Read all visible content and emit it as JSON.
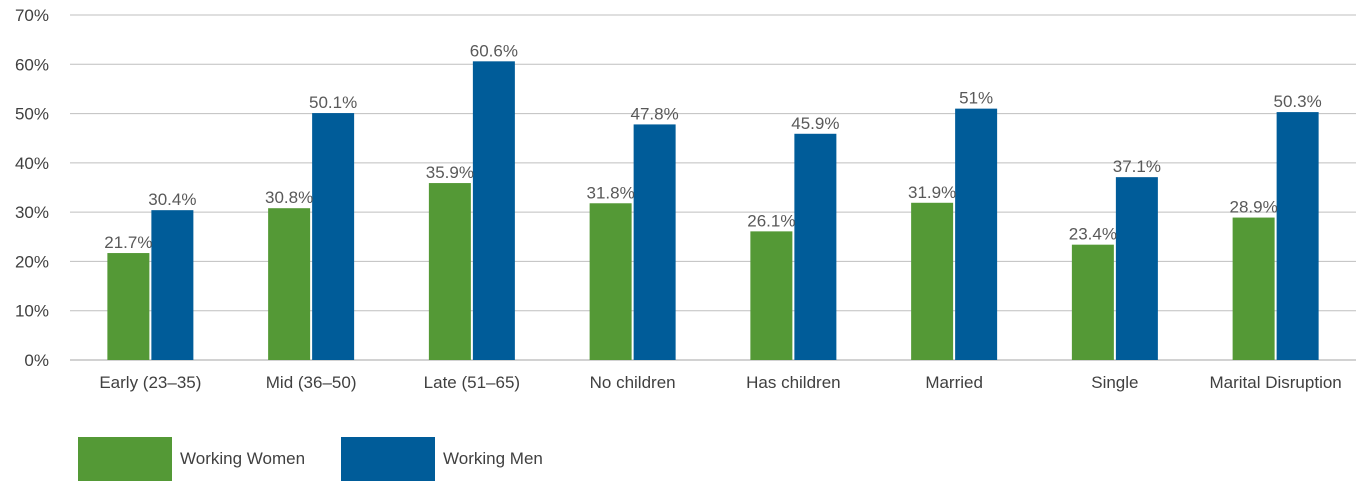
{
  "chart_data": {
    "type": "bar",
    "categories": [
      "Early (23–35)",
      "Mid (36–50)",
      "Late (51–65)",
      "No children",
      "Has children",
      "Married",
      "Single",
      "Marital Disruption"
    ],
    "series": [
      {
        "name": "Working Women",
        "color": "#549936",
        "values": [
          21.7,
          30.8,
          35.9,
          31.8,
          26.1,
          31.9,
          23.4,
          28.9
        ],
        "labels": [
          "21.7%",
          "30.8%",
          "35.9%",
          "31.8%",
          "26.1%",
          "31.9%",
          "23.4%",
          "28.9%"
        ]
      },
      {
        "name": "Working Men",
        "color": "#005C99",
        "values": [
          30.4,
          50.1,
          60.6,
          47.8,
          45.9,
          51,
          37.1,
          50.3
        ],
        "labels": [
          "30.4%",
          "50.1%",
          "60.6%",
          "47.8%",
          "45.9%",
          "51%",
          "37.1%",
          "50.3%"
        ]
      }
    ],
    "ylim": [
      0,
      70
    ],
    "yticks": [
      "0%",
      "10%",
      "20%",
      "30%",
      "40%",
      "50%",
      "60%",
      "70%"
    ],
    "grid": true,
    "legend_position": "bottom-left"
  },
  "legend": {
    "women_label": "Working Women",
    "men_label": "Working Men",
    "women_color": "#549936",
    "men_color": "#005C99"
  }
}
